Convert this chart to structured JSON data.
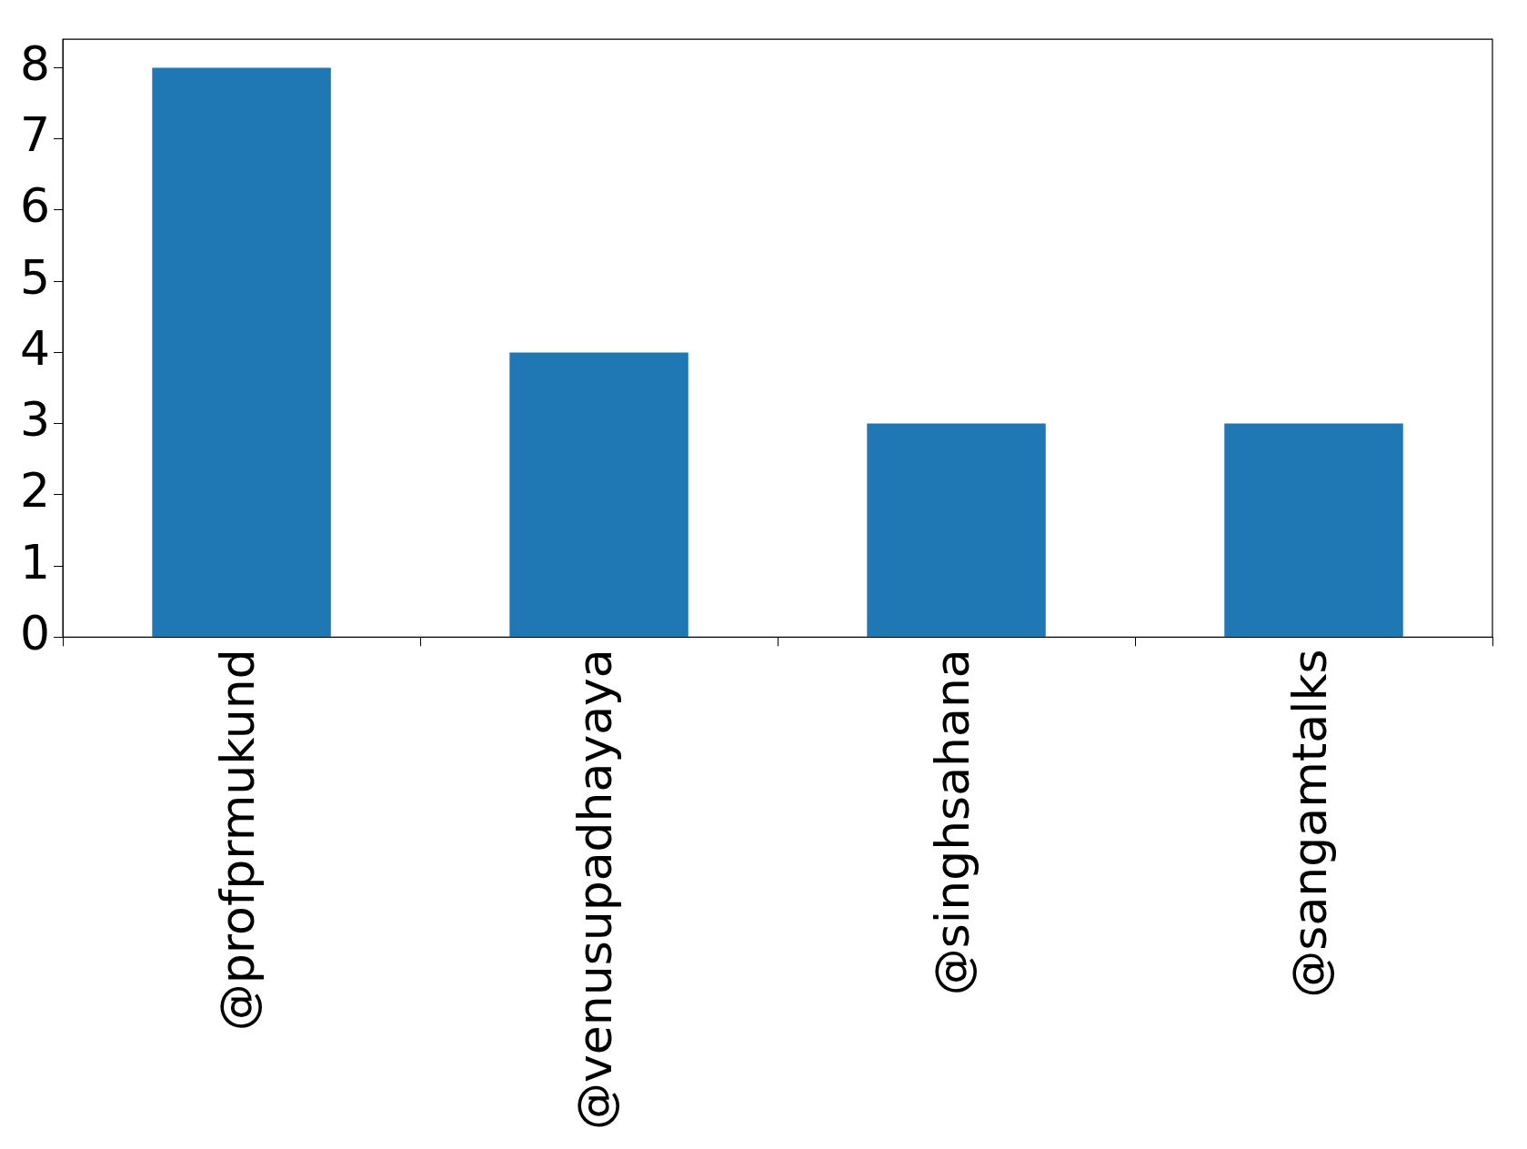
{
  "chart_data": {
    "type": "bar",
    "categories": [
      "@profprmukund",
      "@venusupadhayaya",
      "@singhsahana",
      "@sangamtalks"
    ],
    "values": [
      8,
      4,
      3,
      3
    ],
    "color": "#1f77b4",
    "ylim": [
      0,
      8.4
    ],
    "yticks": [
      0,
      1,
      2,
      3,
      4,
      5,
      6,
      7,
      8
    ],
    "grid": false,
    "legend": false
  }
}
